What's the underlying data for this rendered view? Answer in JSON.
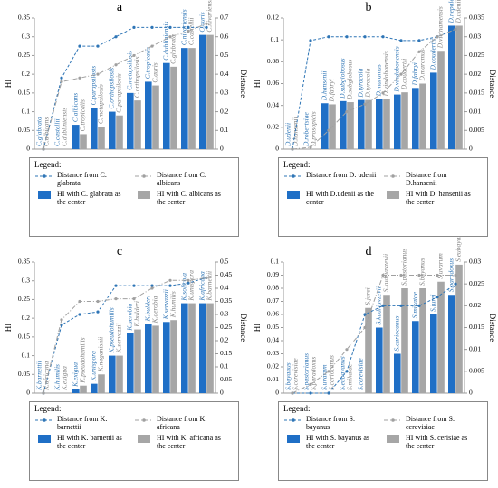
{
  "chart_data": [
    {
      "type": "bar",
      "label": "a",
      "y_label": "HI",
      "y2_label": "Distance",
      "legend_title": "Legend:",
      "ylim": [
        0,
        0.35
      ],
      "yticks": [
        0,
        0.05,
        0.1,
        0.15,
        0.2,
        0.25,
        0.3,
        0.35
      ],
      "y2lim": [
        0,
        0.7
      ],
      "y2ticks": [
        0,
        0.1,
        0.2,
        0.3,
        0.4,
        0.5,
        0.6,
        0.7
      ],
      "series": [
        {
          "type": "line",
          "axis": "y2",
          "name": "Distance from C. glabrata",
          "color": "#2e75b6",
          "values": [
            0,
            0.38,
            0.55,
            0.55,
            0.6,
            0.65,
            0.65,
            0.65,
            0.65,
            0.65
          ]
        },
        {
          "type": "line",
          "axis": "y2",
          "name": "Distance from C. albicans",
          "color": "#a0a0a0",
          "values": [
            0,
            0.36,
            0.38,
            0.4,
            0.45,
            0.5,
            0.55,
            0.6,
            0.63,
            0.67
          ]
        },
        {
          "type": "bar",
          "name": "HI with C. glabrata as the center",
          "color": "#1f6fc6",
          "values": [
            0,
            0,
            0.065,
            0.11,
            0.1,
            0.15,
            0.18,
            0.23,
            0.27,
            0.305
          ],
          "bar_labels": [
            "C.glabrata",
            "C.castellii",
            "C.albicans",
            "C.parapsilosis",
            "C.orthopsilosis",
            "C.metapsilosis",
            "C.tropicalis",
            "C.dubliniensis",
            "C.nivariensis",
            "C.auris"
          ]
        },
        {
          "type": "bar",
          "name": "HI with C. albicans as the center",
          "color": "#a6a6a6",
          "values": [
            0,
            0,
            0.04,
            0.06,
            0.09,
            0.13,
            0.17,
            0.22,
            0.27,
            0.305
          ],
          "bar_labels": [
            "C.albicans",
            "C.dubliniensis",
            "C.tropicalis",
            "C.metapsilosis",
            "C.parapsilosis",
            "C.orthopsilosis",
            "C.auris",
            "C.glabrata",
            "C.castellii",
            "C.nivariensis"
          ]
        }
      ]
    },
    {
      "type": "bar",
      "label": "b",
      "y_label": "HI",
      "y2_label": "Distance",
      "legend_title": "Legend:",
      "ylim": [
        0,
        0.12
      ],
      "yticks": [
        0,
        0.02,
        0.04,
        0.06,
        0.08,
        0.1,
        0.12
      ],
      "y2lim": [
        0,
        0.035
      ],
      "y2ticks": [
        0,
        0.005,
        0.01,
        0.015,
        0.02,
        0.025,
        0.03,
        0.035
      ],
      "series": [
        {
          "type": "line",
          "axis": "y2",
          "name": "Distance from D. udenii",
          "color": "#2e75b6",
          "values": [
            0,
            0.029,
            0.03,
            0.03,
            0.03,
            0.03,
            0.029,
            0.029,
            0.03,
            0.032
          ]
        },
        {
          "type": "line",
          "axis": "y2",
          "name": "Distance from D.hansenii",
          "color": "#a0a0a0",
          "values": [
            0,
            0.0005,
            0.005,
            0.01,
            0.012,
            0.015,
            0.02,
            0.026,
            0.03,
            0.032
          ]
        },
        {
          "type": "bar",
          "name": "HI with D.udenii as the center",
          "color": "#1f6fc6",
          "values": [
            0,
            0,
            0.042,
            0.044,
            0.045,
            0.046,
            0.05,
            0.056,
            0.07,
            0.113
          ],
          "bar_labels": [
            "D.udenii",
            "D.robertsiae",
            "D.hansenii",
            "D.subglobosus",
            "D.tyrocola",
            "D.muramus",
            "D.vindobonensis",
            "D.fabryi",
            "D.coudertii",
            "D.nepalensis"
          ]
        },
        {
          "type": "bar",
          "name": "HI with D. hansenii as the center",
          "color": "#a6a6a6",
          "values": [
            0,
            0,
            0.041,
            0.043,
            0.045,
            0.046,
            0.052,
            0.06,
            0.09,
            0.113
          ],
          "bar_labels": [
            "D.hansenii",
            "D.prosopidis",
            "D.fabryi",
            "D.subglobosus",
            "D.tyrocola",
            "D.vindobonensis",
            "D.coudertii",
            "D.maramus",
            "D.vietnamensis",
            "D.udenii"
          ]
        }
      ]
    },
    {
      "type": "bar",
      "label": "c",
      "y_label": "HI",
      "y2_label": "Distance",
      "legend_title": "Legend:",
      "ylim": [
        0,
        0.35
      ],
      "yticks": [
        0,
        0.05,
        0.1,
        0.15,
        0.2,
        0.25,
        0.3,
        0.35
      ],
      "y2lim": [
        0,
        0.5
      ],
      "y2ticks": [
        0,
        0.05,
        0.1,
        0.15,
        0.2,
        0.25,
        0.3,
        0.35,
        0.4,
        0.45,
        0.5
      ],
      "series": [
        {
          "type": "line",
          "axis": "y2",
          "name": "Distance from K. barnettii",
          "color": "#2e75b6",
          "values": [
            0,
            0.26,
            0.3,
            0.31,
            0.41,
            0.41,
            0.41,
            0.41,
            0.42,
            0.44
          ]
        },
        {
          "type": "line",
          "axis": "y2",
          "name": "Distance from K. africana",
          "color": "#a0a0a0",
          "values": [
            0,
            0.28,
            0.35,
            0.35,
            0.36,
            0.36,
            0.4,
            0.43,
            0.43,
            0.44
          ]
        },
        {
          "type": "bar",
          "name": "HI with K. barnettii as the center",
          "color": "#1f6fc6",
          "values": [
            0,
            0,
            0.01,
            0.025,
            0.1,
            0.16,
            0.185,
            0.19,
            0.24,
            0.24
          ],
          "bar_labels": [
            "K.barnettii",
            "K.humilis",
            "K.exigua",
            "K.unispora",
            "K.pseudohumilis",
            "K.aerobia",
            "K.bulderi",
            "K.servazzii",
            "K.solicola",
            "K.africana"
          ]
        },
        {
          "type": "bar",
          "name": "HI with K. africana as the center",
          "color": "#a6a6a6",
          "values": [
            0,
            0,
            0.02,
            0.05,
            0.1,
            0.17,
            0.18,
            0.195,
            0.24,
            0.24
          ],
          "bar_labels": [
            "K.africana",
            "K.exigua",
            "K.pseudohumilis",
            "K.naganishii",
            "K.servazzii",
            "K.bulderi",
            "K.aerobia",
            "K.humilis",
            "K.unispora",
            "K.barnettii"
          ]
        }
      ]
    },
    {
      "type": "bar",
      "label": "d",
      "y_label": "HI",
      "y2_label": "Distance",
      "legend_title": "Legend:",
      "ylim": [
        0,
        0.1
      ],
      "yticks": [
        0,
        0.01,
        0.02,
        0.03,
        0.04,
        0.05,
        0.06,
        0.07,
        0.08,
        0.09,
        0.1
      ],
      "y2lim": [
        0,
        0.03
      ],
      "y2ticks": [
        0,
        0.005,
        0.01,
        0.015,
        0.02,
        0.025,
        0.03
      ],
      "series": [
        {
          "type": "line",
          "axis": "y2",
          "name": "Distance from S. bayanus",
          "color": "#2e75b6",
          "values": [
            0,
            0,
            0,
            0.005,
            0.018,
            0.02,
            0.02,
            0.02,
            0.022,
            0.025
          ]
        },
        {
          "type": "line",
          "axis": "y2",
          "name": "Distance from S. cerevisiae",
          "color": "#a0a0a0",
          "values": [
            0,
            0.002,
            0.005,
            0.01,
            0.015,
            0.027,
            0.027,
            0.027,
            0.027,
            0.027
          ]
        },
        {
          "type": "bar",
          "name": "HI with S. bayanus as the center",
          "color": "#1f6fc6",
          "values": [
            0,
            0,
            0,
            0,
            0,
            0.05,
            0.03,
            0.055,
            0.06,
            0.075
          ],
          "bar_labels": [
            "S.bayanus",
            "S.pastorianus",
            "S.uvarum",
            "S.eubayanus",
            "S.cerevisiae",
            "S.kudriavzevii",
            "S.cariocanus",
            "S.mikatae",
            "S.jurei",
            "S.paradoxus"
          ]
        },
        {
          "type": "bar",
          "name": "HI with S. cerisiae as the center",
          "color": "#a6a6a6",
          "values": [
            0,
            0,
            0,
            0,
            0.065,
            0.075,
            0.08,
            0.08,
            0.085,
            0.098
          ],
          "bar_labels": [
            "S.cerevisiae",
            "S.paradoxus",
            "S.cariocanus",
            "S.mikatae",
            "S.jurei",
            "S.kudriavzevii",
            "S.pastorianus",
            "S.bayanus",
            "S.uvarum",
            "S.eubayanus"
          ]
        }
      ]
    }
  ]
}
